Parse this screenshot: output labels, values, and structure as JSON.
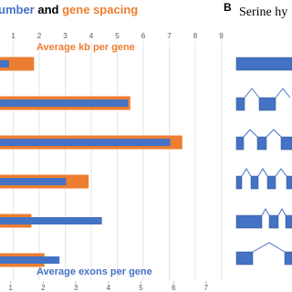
{
  "chart_data": {
    "type": "bar",
    "orientation": "horizontal",
    "title_parts": [
      {
        "text": "umber",
        "color": "#4472c4"
      },
      {
        "text": "and",
        "color": "#000000"
      },
      {
        "text": "gene spacing",
        "color": "#ed7d31"
      }
    ],
    "categories": [
      null,
      null,
      null,
      null,
      null,
      null
    ],
    "series": [
      {
        "name": "Average kb per gene",
        "color": "#ed7d31",
        "values": [
          1.8,
          5.5,
          7.5,
          3.9,
          1.7,
          2.2
        ]
      },
      {
        "name": "Average exons per gene",
        "color": "#4472c4",
        "axis": "x2",
        "values": [
          0.95,
          4.6,
          5.9,
          2.7,
          3.8,
          2.5
        ]
      }
    ],
    "xlim": [
      0,
      9.5
    ],
    "xticks": [
      1,
      2,
      3,
      4,
      5,
      6,
      7,
      8,
      9
    ],
    "x2lim": [
      0,
      7.5
    ],
    "x2ticks": [
      1,
      2,
      3,
      4,
      5,
      6,
      7
    ],
    "grid": true
  },
  "panel_b": {
    "letter": "B",
    "title": "Serine hy"
  }
}
